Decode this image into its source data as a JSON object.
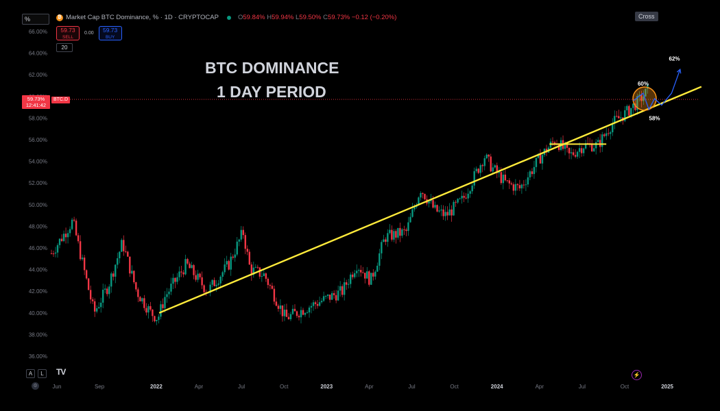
{
  "toolbar": {
    "symbol_box": "%",
    "cross_label": "Cross"
  },
  "legend": {
    "coin_icon": "bitcoin-coin-icon",
    "title": "Market Cap BTC Dominance, % · 1D · CRYPTOCAP",
    "open_label": "O",
    "open": "59.84%",
    "high_label": "H",
    "high": "59.94%",
    "low_label": "L",
    "low": "59.50%",
    "close_label": "C",
    "close": "59.73%",
    "change": "−0.12 (−0.20%)"
  },
  "trade": {
    "sell_price": "59.73",
    "sell_label": "SELL",
    "spread": "0.00",
    "buy_price": "59.73",
    "buy_label": "BUY"
  },
  "volume_indicator": "20",
  "price_tag": {
    "price": "59.73%",
    "countdown": "12:41:42",
    "symbol": "BTC.D"
  },
  "annotations": {
    "title_line1": "BTC DOMINANCE",
    "title_line2": "1 DAY PERIOD",
    "target_high": "62%",
    "level_60": "60%",
    "level_58": "58%"
  },
  "bottom": {
    "tz_a": "A",
    "tz_l": "L",
    "logo": "TV"
  },
  "colors": {
    "up": "#089981",
    "down": "#f23645",
    "trendline": "#ffeb3b",
    "circle": "#f7931a",
    "projection": "#2962ff",
    "text": "#d1d4dc"
  },
  "chart_data": {
    "type": "candlestick",
    "title": "Market Cap BTC Dominance, %",
    "y_unit": "%",
    "ylim": [
      35.2,
      67.2
    ],
    "y_ticks": [
      "66.00%",
      "64.00%",
      "62.00%",
      "60.00%",
      "58.00%",
      "56.00%",
      "54.00%",
      "52.00%",
      "50.00%",
      "48.00%",
      "46.00%",
      "44.00%",
      "42.00%",
      "40.00%",
      "38.00%",
      "36.00%"
    ],
    "y_tick_values": [
      66,
      64,
      62,
      60,
      58,
      56,
      54,
      52,
      50,
      48,
      46,
      44,
      42,
      40,
      38,
      36
    ],
    "x_ticks": [
      {
        "label": "Jun",
        "month": 0,
        "bold": false
      },
      {
        "label": "Sep",
        "month": 3,
        "bold": false
      },
      {
        "label": "2022",
        "month": 7,
        "bold": true
      },
      {
        "label": "Apr",
        "month": 10,
        "bold": false
      },
      {
        "label": "Jul",
        "month": 13,
        "bold": false
      },
      {
        "label": "Oct",
        "month": 16,
        "bold": false
      },
      {
        "label": "2023",
        "month": 19,
        "bold": true
      },
      {
        "label": "Apr",
        "month": 22,
        "bold": false
      },
      {
        "label": "Jul",
        "month": 25,
        "bold": false
      },
      {
        "label": "Oct",
        "month": 28,
        "bold": false
      },
      {
        "label": "2024",
        "month": 31,
        "bold": true
      },
      {
        "label": "Apr",
        "month": 34,
        "bold": false
      },
      {
        "label": "Jul",
        "month": 37,
        "bold": false
      },
      {
        "label": "Oct",
        "month": 40,
        "bold": false
      },
      {
        "label": "2025",
        "month": 43,
        "bold": true
      }
    ],
    "price_line": 59.73,
    "anchors": [
      [
        0,
        45.5
      ],
      [
        1.5,
        48.5
      ],
      [
        3,
        40
      ],
      [
        4,
        42.5
      ],
      [
        5,
        46.5
      ],
      [
        6,
        42
      ],
      [
        7,
        40
      ],
      [
        7.5,
        39.5
      ],
      [
        8,
        41.5
      ],
      [
        9.5,
        44.5
      ],
      [
        11,
        42
      ],
      [
        12.5,
        44.5
      ],
      [
        13.5,
        47.5
      ],
      [
        14,
        44
      ],
      [
        15,
        43.5
      ],
      [
        16.5,
        39.5
      ],
      [
        18,
        40.5
      ],
      [
        20.5,
        42
      ],
      [
        21.5,
        44.5
      ],
      [
        22.5,
        43
      ],
      [
        23.5,
        47
      ],
      [
        25,
        47.5
      ],
      [
        26,
        51.5
      ],
      [
        27,
        49.5
      ],
      [
        27.8,
        49
      ],
      [
        29,
        50.5
      ],
      [
        30.5,
        54.5
      ],
      [
        31,
        53.5
      ],
      [
        32,
        52
      ],
      [
        33,
        51.5
      ],
      [
        34.5,
        54.5
      ],
      [
        35.5,
        56
      ],
      [
        36.5,
        54.5
      ],
      [
        37.5,
        55.5
      ],
      [
        38.5,
        55.5
      ],
      [
        39.5,
        57.5
      ],
      [
        40.5,
        58.5
      ],
      [
        41.3,
        59.5
      ],
      [
        42,
        60.5
      ]
    ],
    "trendline": [
      [
        7.3,
        40.0
      ],
      [
        45.5,
        60.9
      ]
    ],
    "support_line": [
      [
        34.8,
        55.6
      ],
      [
        38.8,
        55.6
      ]
    ],
    "projection_path": [
      [
        40.7,
        59.6
      ],
      [
        41.4,
        60.3
      ],
      [
        41.8,
        58.8
      ],
      [
        42.2,
        59.8
      ],
      [
        42.7,
        59.2
      ],
      [
        43.4,
        60.3
      ],
      [
        44.0,
        62.5
      ]
    ],
    "circle_center": [
      41.5,
      59.8
    ],
    "label_positions": {
      "level_60": [
        41.4,
        61.0
      ],
      "level_58": [
        42.2,
        57.8
      ],
      "target_high": [
        43.6,
        63.3
      ]
    }
  }
}
